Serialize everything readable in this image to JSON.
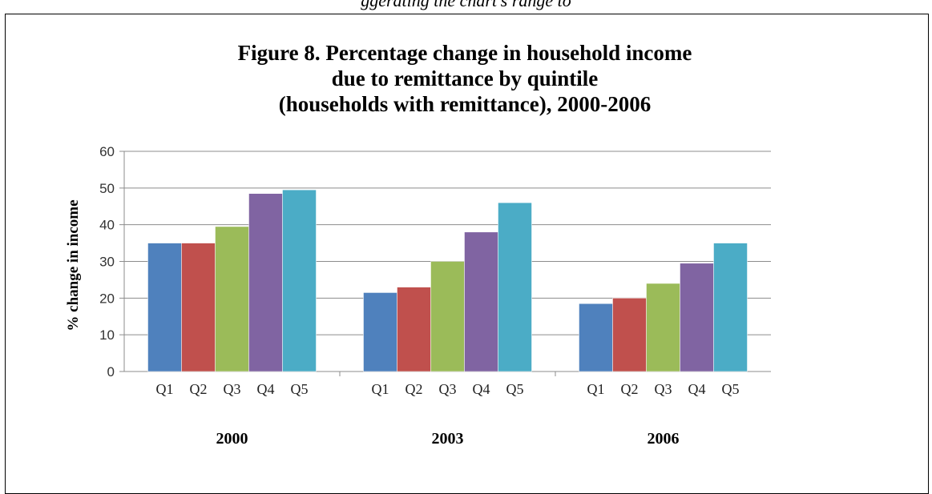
{
  "header_fragment": "ggerating the chart's range to",
  "chart_data": {
    "type": "bar",
    "title_lines": [
      "Figure 8. Percentage change in household income",
      "due to remittance by quintile",
      "(households with remittance), 2000-2006"
    ],
    "ylabel": "% change in income",
    "xlabel": "",
    "ylim": [
      0,
      60
    ],
    "yticks": [
      0,
      10,
      20,
      30,
      40,
      50,
      60
    ],
    "grid": true,
    "legend": "none",
    "groups": [
      "2000",
      "2003",
      "2006"
    ],
    "categories": [
      "Q1",
      "Q2",
      "Q3",
      "Q4",
      "Q5"
    ],
    "colors": [
      "#4F81BD",
      "#C0504D",
      "#9BBB59",
      "#8064A2",
      "#4BACC6"
    ],
    "values": [
      [
        35,
        35,
        39.5,
        48.5,
        49.5
      ],
      [
        21.5,
        23,
        30,
        38,
        46
      ],
      [
        18.5,
        20,
        24,
        29.5,
        35
      ]
    ]
  }
}
